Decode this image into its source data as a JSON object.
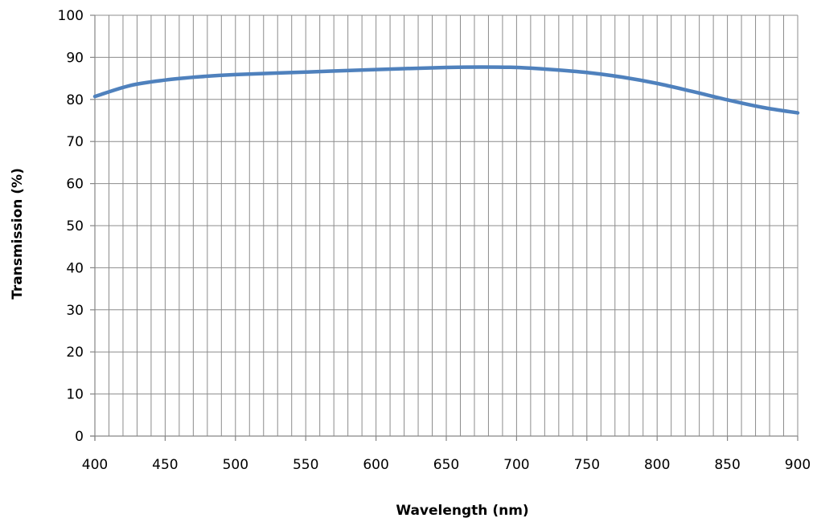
{
  "chart_data": {
    "type": "line",
    "title": "",
    "xlabel": "Wavelength (nm)",
    "ylabel": "Transmission (%)",
    "xlim": [
      400,
      900
    ],
    "ylim": [
      0,
      100
    ],
    "x_ticks": [
      400,
      450,
      500,
      550,
      600,
      650,
      700,
      750,
      800,
      850,
      900
    ],
    "y_ticks": [
      0,
      10,
      20,
      30,
      40,
      50,
      60,
      70,
      80,
      90,
      100
    ],
    "x_minor_step": 10,
    "grid": true,
    "legend": "none",
    "series": [
      {
        "color": "#4f81bd",
        "x": [
          400,
          425,
          450,
          475,
          500,
          550,
          600,
          650,
          675,
          700,
          725,
          750,
          775,
          800,
          825,
          850,
          875,
          900
        ],
        "y": [
          80.7,
          83.3,
          84.6,
          85.4,
          85.9,
          86.5,
          87.1,
          87.6,
          87.7,
          87.6,
          87.1,
          86.4,
          85.3,
          83.8,
          81.9,
          79.9,
          78.1,
          76.8
        ]
      }
    ]
  }
}
